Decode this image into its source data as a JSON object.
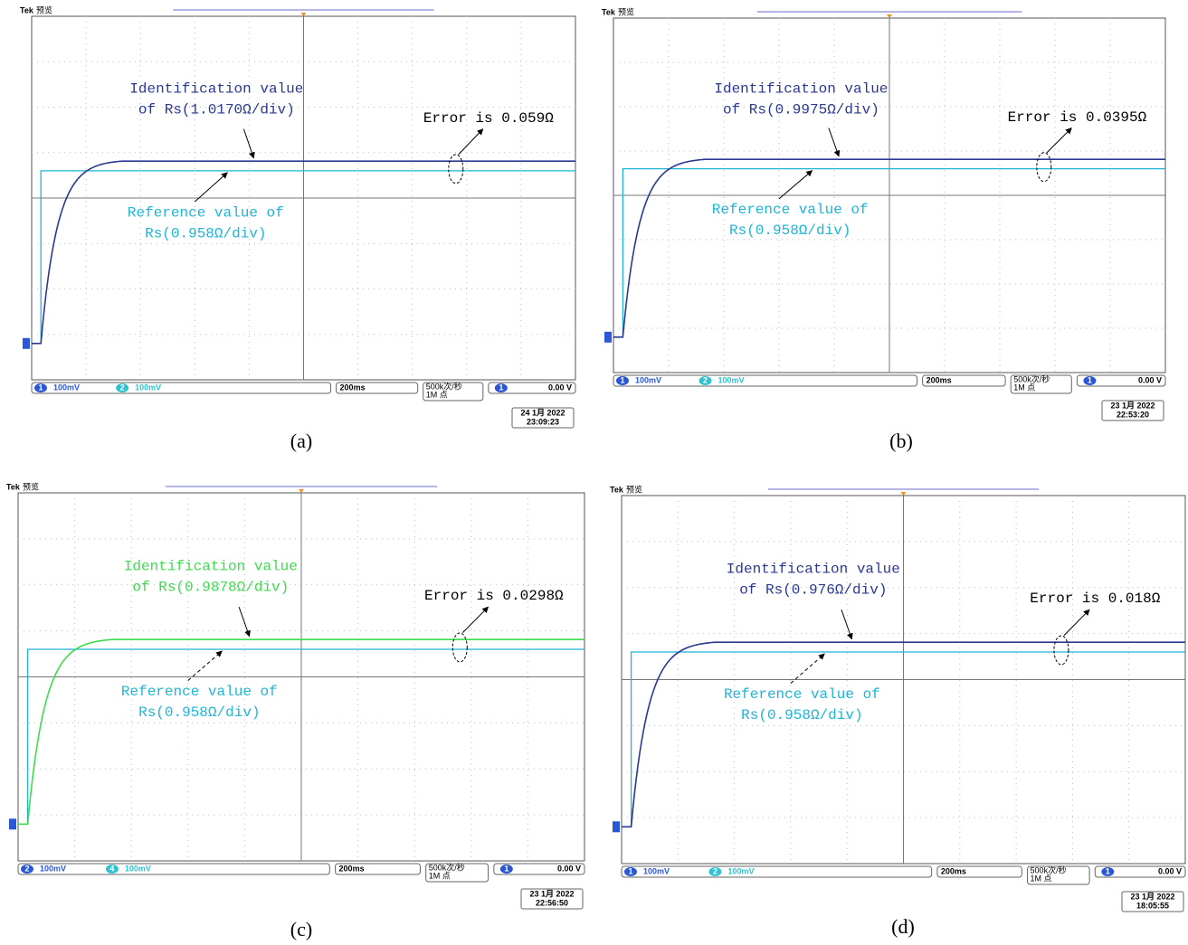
{
  "panels": [
    {
      "caption": "(a)",
      "brand": "Tek",
      "mode": "预览",
      "identification": [
        "Identification value",
        "of Rs(1.0170Ω/div)"
      ],
      "reference": [
        "Reference value of",
        "Rs(0.958Ω/div)"
      ],
      "error": "Error is 0.059Ω",
      "colors": {
        "identification": "#2b3990",
        "reference": "#1fb5d6"
      },
      "channels": [
        {
          "number": "1",
          "scale": "100mV"
        },
        {
          "number": "2",
          "scale": "100mV"
        }
      ],
      "timebase": "200ms",
      "sample_rate": "500k次/秒",
      "record_length": "1M 点",
      "trigger_channel": "1",
      "trigger_level": "0.00 V",
      "date": "24 1月 2022",
      "time": "23:09:23"
    },
    {
      "caption": "(b)",
      "brand": "Tek",
      "mode": "预览",
      "identification": [
        "Identification value",
        "of Rs(0.9975Ω/div)"
      ],
      "reference": [
        "Reference value of",
        "Rs(0.958Ω/div)"
      ],
      "error": "Error is 0.0395Ω",
      "colors": {
        "identification": "#2b3990",
        "reference": "#1fb5d6"
      },
      "channels": [
        {
          "number": "1",
          "scale": "100mV"
        },
        {
          "number": "2",
          "scale": "100mV"
        }
      ],
      "timebase": "200ms",
      "sample_rate": "500k次/秒",
      "record_length": "1M 点",
      "trigger_channel": "1",
      "trigger_level": "0.00 V",
      "date": "23 1月 2022",
      "time": "22:53:20"
    },
    {
      "caption": "(c)",
      "brand": "Tek",
      "mode": "预览",
      "identification": [
        "Identification value",
        "of Rs(0.9878Ω/div)"
      ],
      "reference": [
        "Reference value of",
        "Rs(0.958Ω/div)"
      ],
      "error": "Error is 0.0298Ω",
      "colors": {
        "identification": "#3ddc4f",
        "reference": "#1fb5d6"
      },
      "channels": [
        {
          "number": "2",
          "scale": "100mV"
        },
        {
          "number": "4",
          "scale": "100mV"
        }
      ],
      "timebase": "200ms",
      "sample_rate": "500k次/秒",
      "record_length": "1M 点",
      "trigger_channel": "1",
      "trigger_level": "0.00 V",
      "date": "23 1月 2022",
      "time": "22:56:50"
    },
    {
      "caption": "(d)",
      "brand": "Tek",
      "mode": "预览",
      "identification": [
        "Identification value",
        "of Rs(0.976Ω/div)"
      ],
      "reference": [
        "Reference value of",
        "Rs(0.958Ω/div)"
      ],
      "error": "Error is 0.018Ω",
      "colors": {
        "identification": "#2b3990",
        "reference": "#1fb5d6"
      },
      "channels": [
        {
          "number": "1",
          "scale": "100mV"
        },
        {
          "number": "2",
          "scale": "100mV"
        }
      ],
      "timebase": "200ms",
      "sample_rate": "500k次/秒",
      "record_length": "1M 点",
      "trigger_channel": "1",
      "trigger_level": "0.00 V",
      "date": "23 1月 2022",
      "time": "18:05:55"
    }
  ]
}
